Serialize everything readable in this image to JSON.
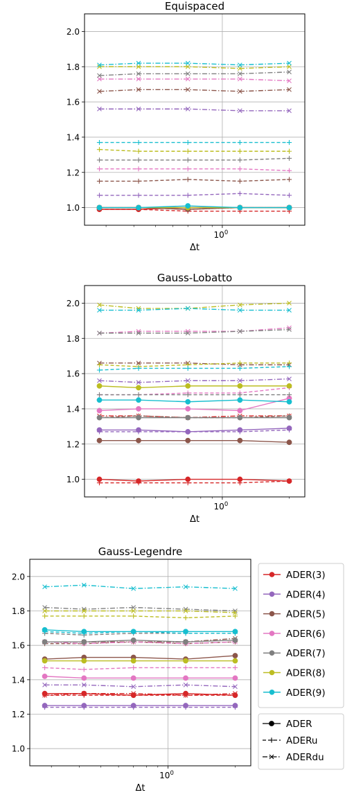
{
  "chart_data": [
    {
      "type": "line",
      "title": "Equispaced",
      "xlabel": "Δt",
      "ylabel": "",
      "xscale": "log",
      "x": [
        0.28,
        0.42,
        0.7,
        1.2,
        2.0
      ],
      "xtick_labels": [
        "10^0"
      ],
      "ylim": [
        0.9,
        2.1
      ],
      "yticks": [
        "1.0",
        "1.2",
        "1.4",
        "1.6",
        "1.8",
        "2.0"
      ],
      "grid": true,
      "series": [
        {
          "method": "ADER(3)",
          "variant": "ADER",
          "values": [
            0.99,
            0.99,
            1.0,
            1.0,
            1.0
          ]
        },
        {
          "method": "ADER(3)",
          "variant": "ADERu",
          "values": [
            0.99,
            0.99,
            0.98,
            0.98,
            0.98
          ]
        },
        {
          "method": "ADER(3)",
          "variant": "ADERdu",
          "values": [
            1.0,
            1.0,
            0.99,
            1.0,
            1.0
          ]
        },
        {
          "method": "ADER(4)",
          "variant": "ADER",
          "values": [
            1.0,
            1.0,
            1.0,
            1.0,
            1.0
          ]
        },
        {
          "method": "ADER(4)",
          "variant": "ADERu",
          "values": [
            1.07,
            1.07,
            1.07,
            1.08,
            1.07
          ]
        },
        {
          "method": "ADER(4)",
          "variant": "ADERdu",
          "values": [
            1.56,
            1.56,
            1.56,
            1.55,
            1.55
          ]
        },
        {
          "method": "ADER(5)",
          "variant": "ADER",
          "values": [
            1.0,
            1.0,
            0.99,
            1.0,
            1.0
          ]
        },
        {
          "method": "ADER(5)",
          "variant": "ADERu",
          "values": [
            1.15,
            1.15,
            1.16,
            1.15,
            1.16
          ]
        },
        {
          "method": "ADER(5)",
          "variant": "ADERdu",
          "values": [
            1.66,
            1.67,
            1.67,
            1.66,
            1.67
          ]
        },
        {
          "method": "ADER(6)",
          "variant": "ADER",
          "values": [
            1.0,
            1.0,
            1.0,
            1.0,
            1.0
          ]
        },
        {
          "method": "ADER(6)",
          "variant": "ADERu",
          "values": [
            1.22,
            1.22,
            1.22,
            1.22,
            1.21
          ]
        },
        {
          "method": "ADER(6)",
          "variant": "ADERdu",
          "values": [
            1.73,
            1.73,
            1.73,
            1.73,
            1.72
          ]
        },
        {
          "method": "ADER(7)",
          "variant": "ADER",
          "values": [
            1.0,
            1.0,
            1.0,
            1.0,
            1.0
          ]
        },
        {
          "method": "ADER(7)",
          "variant": "ADERu",
          "values": [
            1.27,
            1.27,
            1.27,
            1.27,
            1.28
          ]
        },
        {
          "method": "ADER(7)",
          "variant": "ADERdu",
          "values": [
            1.75,
            1.76,
            1.76,
            1.76,
            1.77
          ]
        },
        {
          "method": "ADER(8)",
          "variant": "ADER",
          "values": [
            1.0,
            1.0,
            1.0,
            1.0,
            1.0
          ]
        },
        {
          "method": "ADER(8)",
          "variant": "ADERu",
          "values": [
            1.33,
            1.32,
            1.32,
            1.32,
            1.32
          ]
        },
        {
          "method": "ADER(8)",
          "variant": "ADERdu",
          "values": [
            1.8,
            1.8,
            1.8,
            1.79,
            1.8
          ]
        },
        {
          "method": "ADER(9)",
          "variant": "ADER",
          "values": [
            1.0,
            1.0,
            1.01,
            1.0,
            1.0
          ]
        },
        {
          "method": "ADER(9)",
          "variant": "ADERu",
          "values": [
            1.37,
            1.37,
            1.37,
            1.37,
            1.37
          ]
        },
        {
          "method": "ADER(9)",
          "variant": "ADERdu",
          "values": [
            1.81,
            1.82,
            1.82,
            1.81,
            1.82
          ]
        }
      ]
    },
    {
      "type": "line",
      "title": "Gauss-Lobatto",
      "xlabel": "Δt",
      "ylabel": "",
      "xscale": "log",
      "x": [
        0.28,
        0.42,
        0.7,
        1.2,
        2.0
      ],
      "xtick_labels": [
        "10^0"
      ],
      "ylim": [
        0.9,
        2.1
      ],
      "yticks": [
        "1.0",
        "1.2",
        "1.4",
        "1.6",
        "1.8",
        "2.0"
      ],
      "grid": true,
      "series": [
        {
          "method": "ADER(3)",
          "variant": "ADER",
          "values": [
            1.0,
            0.99,
            1.0,
            1.0,
            0.99
          ]
        },
        {
          "method": "ADER(3)",
          "variant": "ADERu",
          "values": [
            0.98,
            0.98,
            0.98,
            0.98,
            0.99
          ]
        },
        {
          "method": "ADER(3)",
          "variant": "ADERdu",
          "values": [
            1.36,
            1.36,
            1.35,
            1.36,
            1.36
          ]
        },
        {
          "method": "ADER(4)",
          "variant": "ADER",
          "values": [
            1.28,
            1.28,
            1.27,
            1.28,
            1.29
          ]
        },
        {
          "method": "ADER(4)",
          "variant": "ADERu",
          "values": [
            1.27,
            1.27,
            1.27,
            1.27,
            1.28
          ]
        },
        {
          "method": "ADER(4)",
          "variant": "ADERdu",
          "values": [
            1.56,
            1.55,
            1.56,
            1.56,
            1.57
          ]
        },
        {
          "method": "ADER(5)",
          "variant": "ADER",
          "values": [
            1.22,
            1.22,
            1.22,
            1.22,
            1.21
          ]
        },
        {
          "method": "ADER(5)",
          "variant": "ADERu",
          "values": [
            1.35,
            1.36,
            1.35,
            1.35,
            1.36
          ]
        },
        {
          "method": "ADER(5)",
          "variant": "ADERdu",
          "values": [
            1.66,
            1.66,
            1.66,
            1.65,
            1.65
          ]
        },
        {
          "method": "ADER(6)",
          "variant": "ADER",
          "values": [
            1.39,
            1.4,
            1.4,
            1.39,
            1.46
          ]
        },
        {
          "method": "ADER(6)",
          "variant": "ADERu",
          "values": [
            1.48,
            1.48,
            1.49,
            1.49,
            1.52
          ]
        },
        {
          "method": "ADER(6)",
          "variant": "ADERdu",
          "values": [
            1.83,
            1.84,
            1.84,
            1.84,
            1.86
          ]
        },
        {
          "method": "ADER(7)",
          "variant": "ADER",
          "values": [
            1.35,
            1.35,
            1.35,
            1.35,
            1.35
          ]
        },
        {
          "method": "ADER(7)",
          "variant": "ADERu",
          "values": [
            1.48,
            1.48,
            1.48,
            1.48,
            1.48
          ]
        },
        {
          "method": "ADER(7)",
          "variant": "ADERdu",
          "values": [
            1.83,
            1.83,
            1.83,
            1.84,
            1.85
          ]
        },
        {
          "method": "ADER(8)",
          "variant": "ADER",
          "values": [
            1.53,
            1.52,
            1.53,
            1.53,
            1.53
          ]
        },
        {
          "method": "ADER(8)",
          "variant": "ADERu",
          "values": [
            1.65,
            1.64,
            1.65,
            1.66,
            1.66
          ]
        },
        {
          "method": "ADER(8)",
          "variant": "ADERdu",
          "values": [
            1.99,
            1.97,
            1.97,
            1.99,
            2.0
          ]
        },
        {
          "method": "ADER(9)",
          "variant": "ADER",
          "values": [
            1.45,
            1.45,
            1.44,
            1.45,
            1.44
          ]
        },
        {
          "method": "ADER(9)",
          "variant": "ADERu",
          "values": [
            1.62,
            1.63,
            1.63,
            1.63,
            1.64
          ]
        },
        {
          "method": "ADER(9)",
          "variant": "ADERdu",
          "values": [
            1.96,
            1.96,
            1.97,
            1.96,
            1.96
          ]
        }
      ]
    },
    {
      "type": "line",
      "title": "Gauss-Legendre",
      "xlabel": "Δt",
      "ylabel": "",
      "xscale": "log",
      "x": [
        0.28,
        0.42,
        0.7,
        1.2,
        2.0
      ],
      "xtick_labels": [
        "10^0"
      ],
      "ylim": [
        0.9,
        2.1
      ],
      "yticks": [
        "1.0",
        "1.2",
        "1.4",
        "1.6",
        "1.8",
        "2.0"
      ],
      "grid": true,
      "series": [
        {
          "method": "ADER(3)",
          "variant": "ADER",
          "values": [
            1.32,
            1.32,
            1.31,
            1.32,
            1.31
          ]
        },
        {
          "method": "ADER(3)",
          "variant": "ADERu",
          "values": [
            1.31,
            1.31,
            1.31,
            1.31,
            1.31
          ]
        },
        {
          "method": "ADER(3)",
          "variant": "ADERdu",
          "values": [
            1.31,
            1.32,
            1.32,
            1.31,
            1.32
          ]
        },
        {
          "method": "ADER(4)",
          "variant": "ADER",
          "values": [
            1.25,
            1.25,
            1.25,
            1.25,
            1.25
          ]
        },
        {
          "method": "ADER(4)",
          "variant": "ADERu",
          "values": [
            1.24,
            1.24,
            1.24,
            1.24,
            1.24
          ]
        },
        {
          "method": "ADER(4)",
          "variant": "ADERdu",
          "values": [
            1.37,
            1.37,
            1.36,
            1.37,
            1.36
          ]
        },
        {
          "method": "ADER(5)",
          "variant": "ADER",
          "values": [
            1.52,
            1.53,
            1.53,
            1.52,
            1.54
          ]
        },
        {
          "method": "ADER(5)",
          "variant": "ADERu",
          "values": [
            1.61,
            1.61,
            1.62,
            1.61,
            1.62
          ]
        },
        {
          "method": "ADER(5)",
          "variant": "ADERdu",
          "values": [
            1.62,
            1.62,
            1.62,
            1.62,
            1.64
          ]
        },
        {
          "method": "ADER(6)",
          "variant": "ADER",
          "values": [
            1.42,
            1.41,
            1.41,
            1.41,
            1.41
          ]
        },
        {
          "method": "ADER(6)",
          "variant": "ADERu",
          "values": [
            1.47,
            1.46,
            1.47,
            1.47,
            1.47
          ]
        },
        {
          "method": "ADER(6)",
          "variant": "ADERdu",
          "values": [
            1.62,
            1.61,
            1.62,
            1.61,
            1.62
          ]
        },
        {
          "method": "ADER(7)",
          "variant": "ADER",
          "values": [
            1.62,
            1.62,
            1.63,
            1.62,
            1.63
          ]
        },
        {
          "method": "ADER(7)",
          "variant": "ADERu",
          "values": [
            1.67,
            1.66,
            1.67,
            1.67,
            1.67
          ]
        },
        {
          "method": "ADER(7)",
          "variant": "ADERdu",
          "values": [
            1.82,
            1.81,
            1.82,
            1.81,
            1.8
          ]
        },
        {
          "method": "ADER(8)",
          "variant": "ADER",
          "values": [
            1.51,
            1.51,
            1.51,
            1.51,
            1.51
          ]
        },
        {
          "method": "ADER(8)",
          "variant": "ADERu",
          "values": [
            1.77,
            1.77,
            1.77,
            1.76,
            1.77
          ]
        },
        {
          "method": "ADER(8)",
          "variant": "ADERdu",
          "values": [
            1.8,
            1.8,
            1.8,
            1.8,
            1.79
          ]
        },
        {
          "method": "ADER(9)",
          "variant": "ADER",
          "values": [
            1.69,
            1.68,
            1.68,
            1.68,
            1.68
          ]
        },
        {
          "method": "ADER(9)",
          "variant": "ADERu",
          "values": [
            1.68,
            1.67,
            1.68,
            1.67,
            1.67
          ]
        },
        {
          "method": "ADER(9)",
          "variant": "ADERdu",
          "values": [
            1.94,
            1.95,
            1.93,
            1.94,
            1.93
          ]
        }
      ]
    }
  ],
  "legend_methods": [
    {
      "label": "ADER(3)",
      "color": "#d62728"
    },
    {
      "label": "ADER(4)",
      "color": "#9467bd"
    },
    {
      "label": "ADER(5)",
      "color": "#8c564b"
    },
    {
      "label": "ADER(6)",
      "color": "#e377c2"
    },
    {
      "label": "ADER(7)",
      "color": "#7f7f7f"
    },
    {
      "label": "ADER(8)",
      "color": "#bcbd22"
    },
    {
      "label": "ADER(9)",
      "color": "#17becf"
    }
  ],
  "legend_variants": [
    {
      "label": "ADER",
      "dash": "solid",
      "marker": "circle"
    },
    {
      "label": "ADERu",
      "dash": "dashed",
      "marker": "plus"
    },
    {
      "label": "ADERdu",
      "dash": "dashdot",
      "marker": "x"
    }
  ],
  "legend_placement": "right of bottom panel"
}
